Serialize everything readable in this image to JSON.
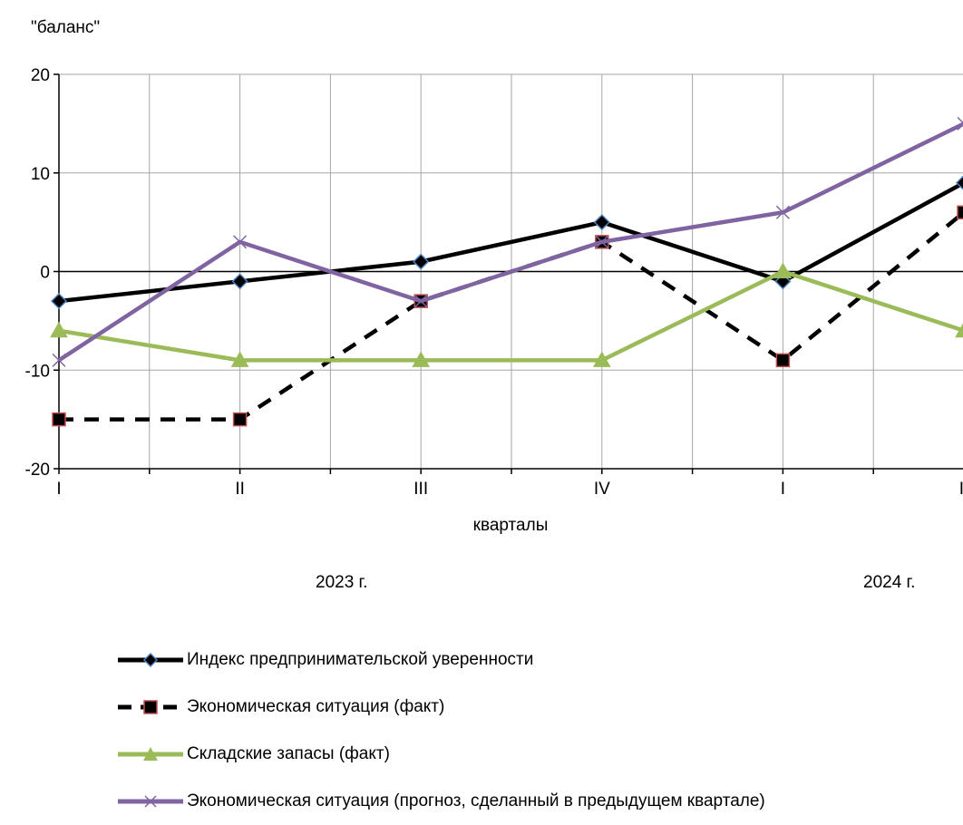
{
  "chart_data": {
    "type": "line",
    "ylabel": "\"баланс\"",
    "xlabel": "кварталы",
    "categories": [
      "I",
      "II",
      "III",
      "IV",
      "I",
      "II"
    ],
    "year_labels": [
      "2023 г.",
      "2024 г."
    ],
    "ylim": [
      -20,
      20
    ],
    "yticks": [
      20,
      10,
      0,
      -10,
      -20
    ],
    "grid": true,
    "legend_position": "bottom",
    "series": [
      {
        "name": "Индекс предпринимательской уверенности",
        "values": [
          -3,
          -1,
          1,
          5,
          -1,
          9
        ],
        "color": "#000000",
        "line_style": "solid",
        "marker": "diamond",
        "marker_fill": "#000000",
        "marker_stroke": "#4f81bd"
      },
      {
        "name": "Экономическая ситуация (факт)",
        "values": [
          -15,
          -15,
          -3,
          3,
          -9,
          6
        ],
        "color": "#000000",
        "line_style": "dashed",
        "marker": "square",
        "marker_fill": "#000000",
        "marker_stroke": "#c0504d"
      },
      {
        "name": "Складские запасы (факт)",
        "values": [
          -6,
          -9,
          -9,
          -9,
          0,
          -6
        ],
        "color": "#9bbb59",
        "line_style": "solid",
        "marker": "triangle",
        "marker_fill": "#9bbb59",
        "marker_stroke": "#9bbb59"
      },
      {
        "name": "Экономическая ситуация (прогноз, сделанный в предыдущем квартале)",
        "values": [
          -9,
          3,
          -3,
          3,
          6,
          15
        ],
        "color": "#8064a2",
        "line_style": "solid",
        "marker": "x",
        "marker_fill": "none",
        "marker_stroke": "#8064a2"
      }
    ]
  }
}
